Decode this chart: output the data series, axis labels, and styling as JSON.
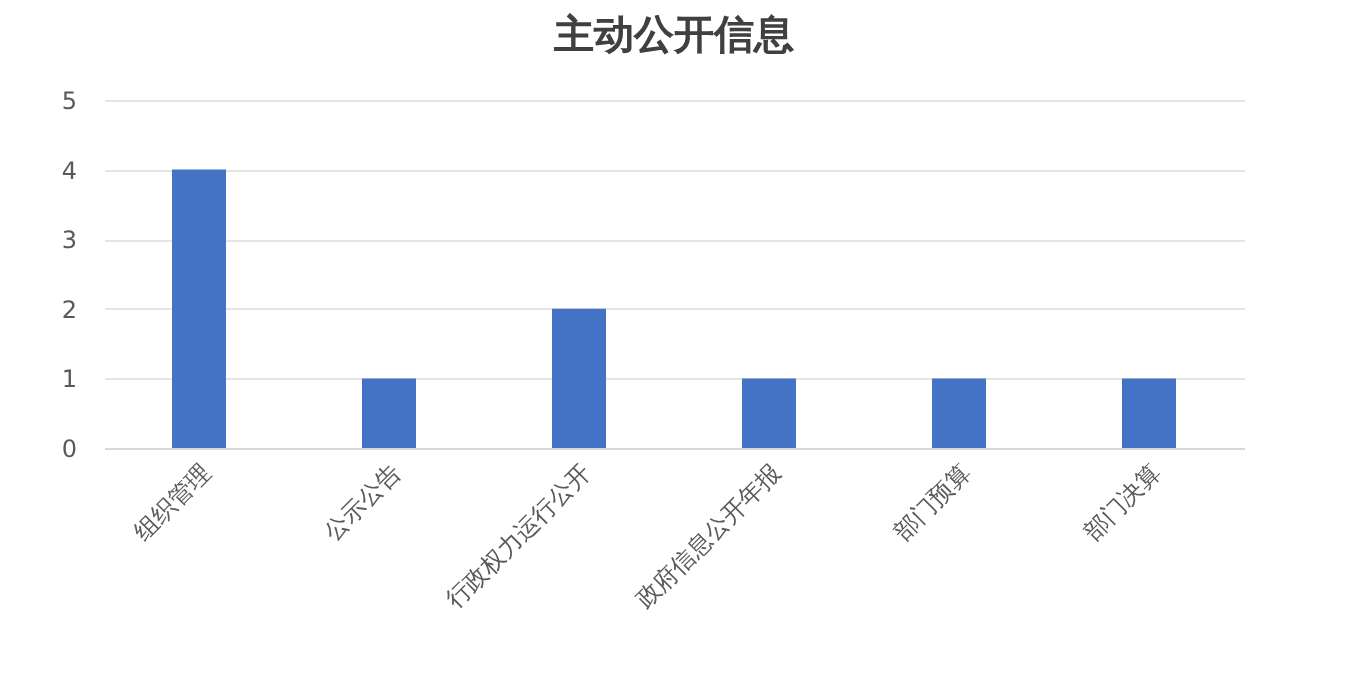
{
  "chart_data": {
    "type": "bar",
    "title": "主动公开信息",
    "categories": [
      "组织管理",
      "公示公告",
      "行政权力运行公开",
      "政府信息公开年报",
      "部门预算",
      "部门决算"
    ],
    "values": [
      4,
      1,
      2,
      1,
      1,
      1
    ],
    "color": "#4472c4",
    "ylim": [
      0,
      5
    ],
    "yticks": [
      0,
      1,
      2,
      3,
      4,
      5
    ],
    "grid": "y"
  }
}
